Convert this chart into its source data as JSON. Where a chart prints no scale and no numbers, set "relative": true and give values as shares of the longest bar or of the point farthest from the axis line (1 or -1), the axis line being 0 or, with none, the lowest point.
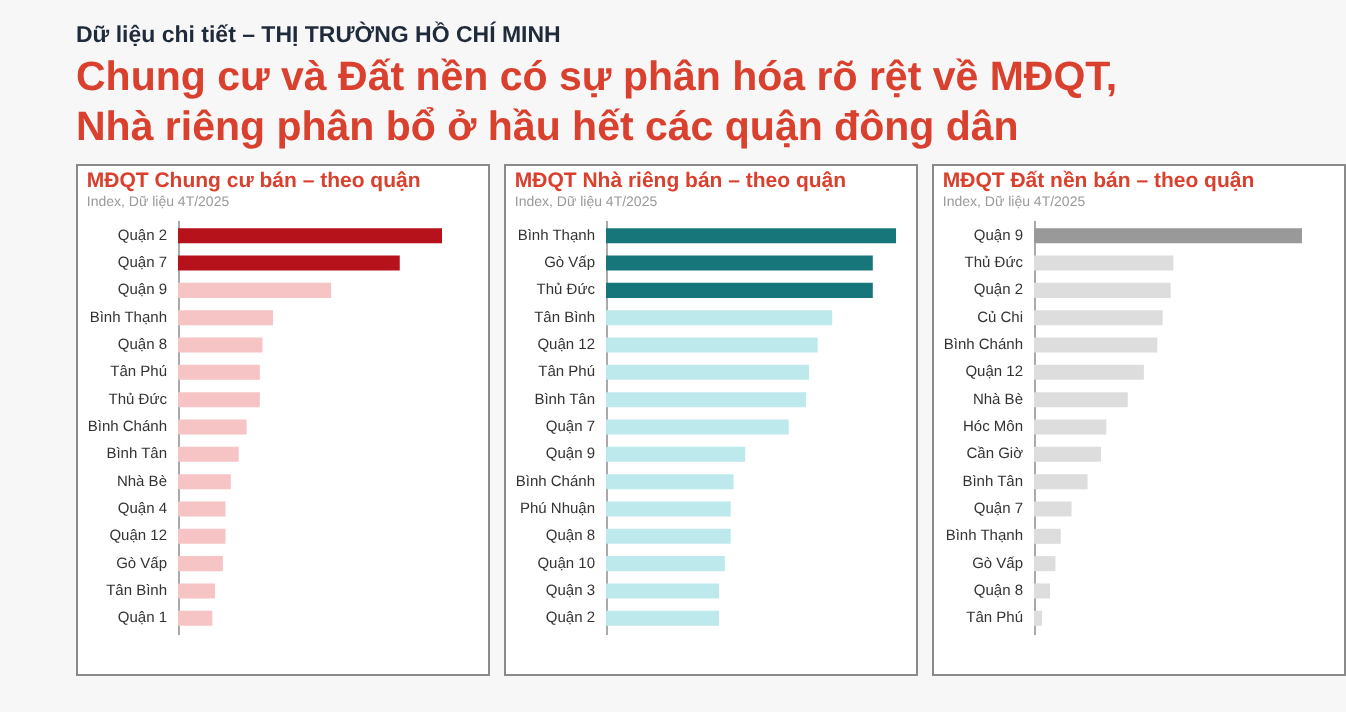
{
  "chart_data": [
    {
      "type": "other",
      "subtitle": "Dữ liệu chi tiết – THỊ TRƯỜNG HỒ CHÍ MINH",
      "title": "Chung cư và Đất nền có sự phân hóa rõ rệt về MĐQT, Nhà riêng phân bổ ở hầu hết các quận đông dân"
    },
    {
      "type": "bar",
      "orientation": "horizontal",
      "relative": true,
      "title": "MĐQT Chung cư bán – theo quận",
      "subtitle": "Index, Dữ liệu 4T/2025",
      "categories": [
        "Quận 2",
        "Quận 7",
        "Quận 9",
        "Bình Thạnh",
        "Quận 8",
        "Tân Phú",
        "Thủ Đức",
        "Bình Chánh",
        "Bình Tân",
        "Nhà Bè",
        "Quận 4",
        "Quận 12",
        "Gò Vấp",
        "Tân Bình",
        "Quận 1"
      ],
      "values": [
        1,
        0.84,
        0.58,
        0.36,
        0.32,
        0.31,
        0.31,
        0.26,
        0.23,
        0.2,
        0.18,
        0.18,
        0.17,
        0.14,
        0.13
      ],
      "colors": [
        "#b5121b",
        "#b5121b",
        "#f6c4c4",
        "#f6c4c4",
        "#f6c4c4",
        "#f6c4c4",
        "#f6c4c4",
        "#f6c4c4",
        "#f6c4c4",
        "#f6c4c4",
        "#f6c4c4",
        "#f6c4c4",
        "#f6c4c4",
        "#f6c4c4",
        "#f6c4c4"
      ]
    },
    {
      "type": "bar",
      "orientation": "horizontal",
      "relative": true,
      "title": "MĐQT Nhà riêng bán – theo quận",
      "subtitle": "Index, Dữ liệu 4T/2025",
      "categories": [
        "Bình Thạnh",
        "Gò Vấp",
        "Thủ Đức",
        "Tân Bình",
        "Quận 12",
        "Tân Phú",
        "Bình Tân",
        "Quận 7",
        "Quận 9",
        "Bình Chánh",
        "Phú Nhuận",
        "Quận 8",
        "Quận 10",
        "Quận 3",
        "Quận 2"
      ],
      "values": [
        1,
        0.92,
        0.92,
        0.78,
        0.73,
        0.7,
        0.69,
        0.63,
        0.48,
        0.44,
        0.43,
        0.43,
        0.41,
        0.39,
        0.39
      ],
      "colors": [
        "#17767a",
        "#17767a",
        "#17767a",
        "#bde8ec",
        "#bde8ec",
        "#bde8ec",
        "#bde8ec",
        "#bde8ec",
        "#bde8ec",
        "#bde8ec",
        "#bde8ec",
        "#bde8ec",
        "#bde8ec",
        "#bde8ec",
        "#bde8ec"
      ]
    },
    {
      "type": "bar",
      "orientation": "horizontal",
      "relative": true,
      "title": "MĐQT Đất nền bán – theo quận",
      "subtitle": "Index, Dữ liệu 4T/2025",
      "categories": [
        "Quận 9",
        "Thủ Đức",
        "Quận 2",
        "Củ Chi",
        "Bình Chánh",
        "Quận 12",
        "Nhà Bè",
        "Hóc Môn",
        "Cần Giờ",
        "Bình Tân",
        "Quận 7",
        "Bình Thạnh",
        "Gò Vấp",
        "Quận 8",
        "Tân Phú"
      ],
      "values": [
        1,
        0.52,
        0.51,
        0.48,
        0.46,
        0.41,
        0.35,
        0.27,
        0.25,
        0.2,
        0.14,
        0.1,
        0.08,
        0.06,
        0.03
      ],
      "colors": [
        "#999999",
        "#dddddd",
        "#dddddd",
        "#dddddd",
        "#dddddd",
        "#dddddd",
        "#dddddd",
        "#dddddd",
        "#dddddd",
        "#dddddd",
        "#dddddd",
        "#dddddd",
        "#dddddd",
        "#dddddd",
        "#dddddd"
      ]
    }
  ]
}
